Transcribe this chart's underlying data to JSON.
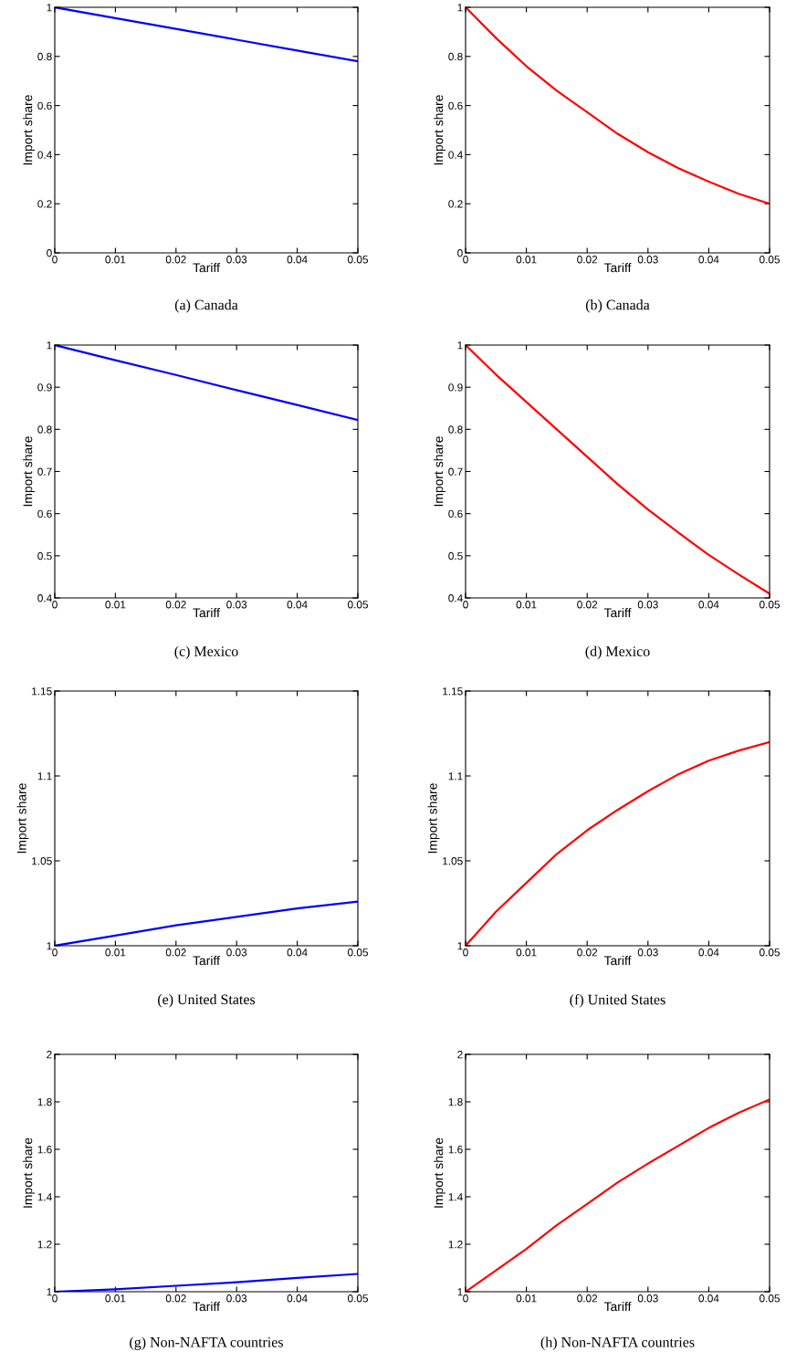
{
  "chart_data": [
    {
      "type": "line",
      "title": "(a) Canada",
      "xlabel": "Tariff",
      "ylabel": "Import share",
      "x": [
        0,
        0.01,
        0.02,
        0.03,
        0.04,
        0.05
      ],
      "series": [
        {
          "color": "#0000ff",
          "values": [
            1,
            0.956,
            0.912,
            0.868,
            0.824,
            0.78
          ]
        }
      ],
      "xlim": [
        0,
        0.05
      ],
      "xticks": [
        0,
        0.01,
        0.02,
        0.03,
        0.04,
        0.05
      ],
      "ylim": [
        0,
        1
      ],
      "yticks": [
        0,
        0.2,
        0.4,
        0.6,
        0.8,
        1
      ],
      "grid": false,
      "legend": false
    },
    {
      "type": "line",
      "title": "(b) Canada",
      "xlabel": "Tariff",
      "ylabel": "Import share",
      "x": [
        0,
        0.005,
        0.01,
        0.015,
        0.02,
        0.025,
        0.03,
        0.035,
        0.04,
        0.045,
        0.05
      ],
      "series": [
        {
          "color": "#ff0000",
          "values": [
            1,
            0.875,
            0.76,
            0.66,
            0.573,
            0.485,
            0.41,
            0.345,
            0.29,
            0.24,
            0.2
          ]
        }
      ],
      "xlim": [
        0,
        0.05
      ],
      "xticks": [
        0,
        0.01,
        0.02,
        0.03,
        0.04,
        0.05
      ],
      "ylim": [
        0,
        1
      ],
      "yticks": [
        0,
        0.2,
        0.4,
        0.6,
        0.8,
        1
      ],
      "grid": false,
      "legend": false
    },
    {
      "type": "line",
      "title": "(c) Mexico",
      "xlabel": "Tariff",
      "ylabel": "Import share",
      "x": [
        0,
        0.01,
        0.02,
        0.03,
        0.04,
        0.05
      ],
      "series": [
        {
          "color": "#0000ff",
          "values": [
            1,
            0.964,
            0.929,
            0.893,
            0.858,
            0.822
          ]
        }
      ],
      "xlim": [
        0,
        0.05
      ],
      "xticks": [
        0,
        0.01,
        0.02,
        0.03,
        0.04,
        0.05
      ],
      "ylim": [
        0.4,
        1
      ],
      "yticks": [
        0.4,
        0.5,
        0.6,
        0.7,
        0.8,
        0.9,
        1
      ],
      "grid": false,
      "legend": false
    },
    {
      "type": "line",
      "title": "(d) Mexico",
      "xlabel": "Tariff",
      "ylabel": "Import share",
      "x": [
        0,
        0.005,
        0.01,
        0.015,
        0.02,
        0.025,
        0.03,
        0.035,
        0.04,
        0.045,
        0.05
      ],
      "series": [
        {
          "color": "#ff0000",
          "values": [
            1,
            0.93,
            0.865,
            0.8,
            0.735,
            0.67,
            0.61,
            0.555,
            0.502,
            0.455,
            0.41
          ]
        }
      ],
      "xlim": [
        0,
        0.05
      ],
      "xticks": [
        0,
        0.01,
        0.02,
        0.03,
        0.04,
        0.05
      ],
      "ylim": [
        0.4,
        1
      ],
      "yticks": [
        0.4,
        0.5,
        0.6,
        0.7,
        0.8,
        0.9,
        1
      ],
      "grid": false,
      "legend": false
    },
    {
      "type": "line",
      "title": "(e) United States",
      "xlabel": "Tariff",
      "ylabel": "Import share",
      "x": [
        0,
        0.01,
        0.02,
        0.03,
        0.04,
        0.05
      ],
      "series": [
        {
          "color": "#0000ff",
          "values": [
            1,
            1.006,
            1.012,
            1.017,
            1.022,
            1.026
          ]
        }
      ],
      "xlim": [
        0,
        0.05
      ],
      "xticks": [
        0,
        0.01,
        0.02,
        0.03,
        0.04,
        0.05
      ],
      "ylim": [
        1,
        1.15
      ],
      "yticks": [
        1,
        1.05,
        1.1,
        1.15
      ],
      "grid": false,
      "legend": false
    },
    {
      "type": "line",
      "title": "(f) United States",
      "xlabel": "Tariff",
      "ylabel": "Import share",
      "x": [
        0,
        0.005,
        0.01,
        0.015,
        0.02,
        0.025,
        0.03,
        0.035,
        0.04,
        0.045,
        0.05
      ],
      "series": [
        {
          "color": "#ff0000",
          "values": [
            1,
            1.02,
            1.037,
            1.054,
            1.068,
            1.08,
            1.091,
            1.101,
            1.109,
            1.115,
            1.12
          ]
        }
      ],
      "xlim": [
        0,
        0.05
      ],
      "xticks": [
        0,
        0.01,
        0.02,
        0.03,
        0.04,
        0.05
      ],
      "ylim": [
        1,
        1.15
      ],
      "yticks": [
        1,
        1.05,
        1.1,
        1.15
      ],
      "grid": false,
      "legend": false
    },
    {
      "type": "line",
      "title": "(g) Non-NAFTA countries",
      "xlabel": "Tariff",
      "ylabel": "Import share",
      "x": [
        0,
        0.01,
        0.02,
        0.03,
        0.04,
        0.05
      ],
      "series": [
        {
          "color": "#0000ff",
          "values": [
            1,
            1.01,
            1.025,
            1.04,
            1.058,
            1.075
          ]
        }
      ],
      "xlim": [
        0,
        0.05
      ],
      "xticks": [
        0,
        0.01,
        0.02,
        0.03,
        0.04,
        0.05
      ],
      "ylim": [
        1,
        2
      ],
      "yticks": [
        1,
        1.2,
        1.4,
        1.6,
        1.8,
        2
      ],
      "grid": false,
      "legend": false
    },
    {
      "type": "line",
      "title": "(h) Non-NAFTA countries",
      "xlabel": "Tariff",
      "ylabel": "Import share",
      "x": [
        0,
        0.005,
        0.01,
        0.015,
        0.02,
        0.025,
        0.03,
        0.035,
        0.04,
        0.045,
        0.05
      ],
      "series": [
        {
          "color": "#ff0000",
          "values": [
            1,
            1.09,
            1.18,
            1.28,
            1.37,
            1.46,
            1.54,
            1.615,
            1.69,
            1.755,
            1.81
          ]
        }
      ],
      "xlim": [
        0,
        0.05
      ],
      "xticks": [
        0,
        0.01,
        0.02,
        0.03,
        0.04,
        0.05
      ],
      "ylim": [
        1,
        2
      ],
      "yticks": [
        1,
        1.2,
        1.4,
        1.6,
        1.8,
        2
      ],
      "grid": false,
      "legend": false
    }
  ]
}
